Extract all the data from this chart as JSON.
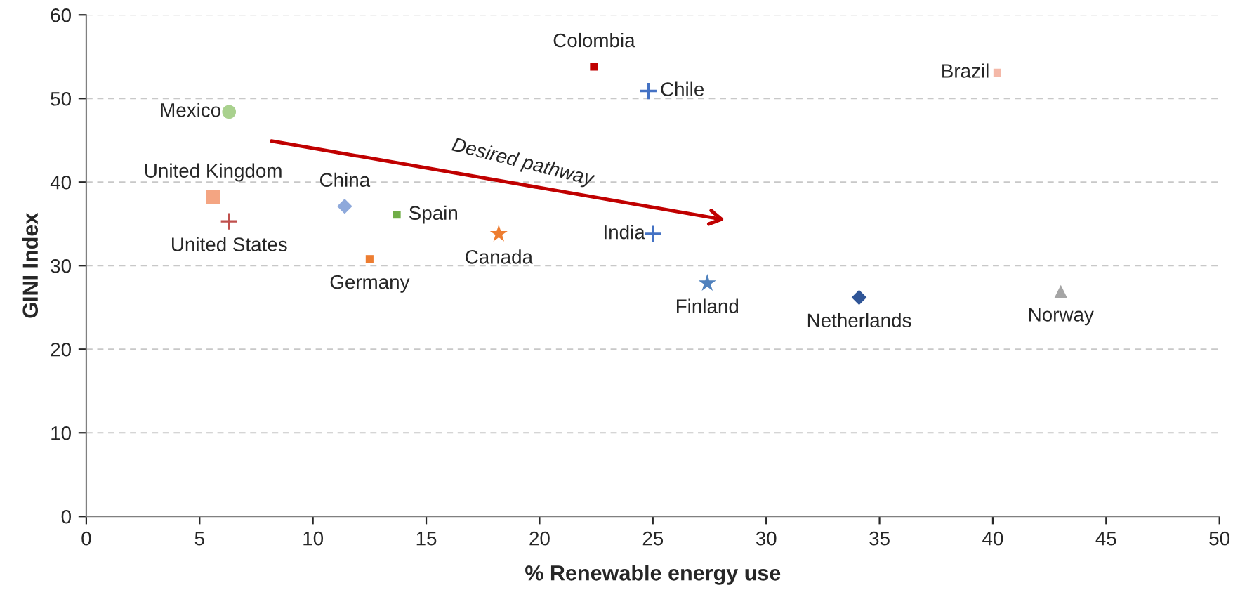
{
  "chart_data": {
    "type": "scatter",
    "xlabel": "% Renewable energy use",
    "ylabel": "GINI Index",
    "xlim": [
      0,
      50
    ],
    "xticks": [
      0,
      5,
      10,
      15,
      20,
      25,
      30,
      35,
      40,
      45,
      50
    ],
    "ylim": [
      0,
      60
    ],
    "yticks": [
      0,
      10,
      20,
      30,
      40,
      50,
      60
    ],
    "grid": "y",
    "annotations": [
      "Desired pathway"
    ],
    "series": [
      {
        "name": "Mexico",
        "color": "#a9d18e",
        "marker": "circle",
        "x": [
          6.3
        ],
        "values": [
          48.4
        ]
      },
      {
        "name": "Colombia",
        "color": "#c00000",
        "x": [
          22.4
        ],
        "values": [
          53.8
        ]
      },
      {
        "name": "Chile",
        "color": "#4472c4",
        "marker": "cross",
        "x": [
          24.8
        ],
        "values": [
          50.9
        ]
      },
      {
        "name": "Brazil",
        "color": "#f4b8a8",
        "x": [
          40.2
        ],
        "values": [
          53.1
        ]
      },
      {
        "name": "United Kingdom",
        "color": "#f4a582",
        "marker": "square",
        "x": [
          5.6
        ],
        "values": [
          38.2
        ]
      },
      {
        "name": "United States",
        "color": "#c0504d",
        "marker": "cross",
        "x": [
          6.3
        ],
        "values": [
          35.3
        ]
      },
      {
        "name": "China",
        "color": "#8ea9db",
        "marker": "diamond",
        "x": [
          11.4
        ],
        "values": [
          37.1
        ]
      },
      {
        "name": "Spain",
        "color": "#70ad47",
        "x": [
          13.7
        ],
        "values": [
          36.1
        ]
      },
      {
        "name": "Germany",
        "color": "#ed7d31",
        "x": [
          12.5
        ],
        "values": [
          30.8
        ]
      },
      {
        "name": "Canada",
        "color": "#ed7d31",
        "marker": "star",
        "x": [
          18.2
        ],
        "values": [
          33.8
        ]
      },
      {
        "name": "India",
        "color": "#4472c4",
        "marker": "cross",
        "x": [
          25.0
        ],
        "values": [
          33.8
        ]
      },
      {
        "name": "Finland",
        "color": "#4f81bd",
        "marker": "star",
        "x": [
          27.4
        ],
        "values": [
          27.9
        ]
      },
      {
        "name": "Netherlands",
        "color": "#2f5597",
        "marker": "diamond",
        "x": [
          34.1
        ],
        "values": [
          26.2
        ]
      },
      {
        "name": "Norway",
        "color": "#a5a5a5",
        "marker": "triangle",
        "x": [
          43.0
        ],
        "values": [
          26.9
        ]
      }
    ]
  }
}
